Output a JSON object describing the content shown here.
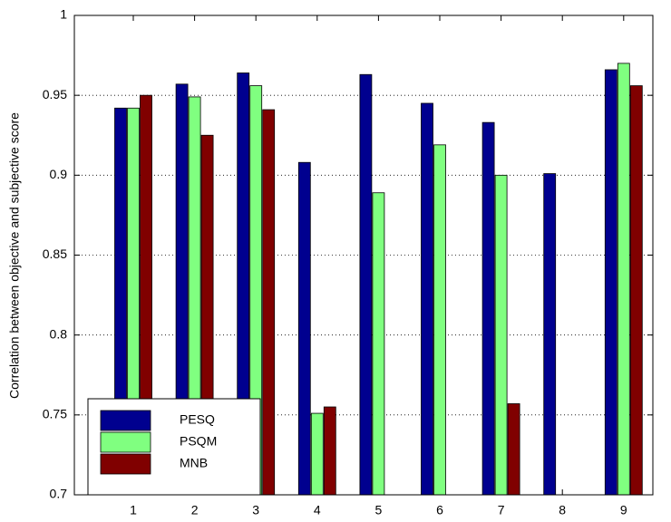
{
  "chart_data": {
    "type": "bar",
    "y_label": "Correlation between objective and subjective score",
    "categories": [
      "1",
      "2",
      "3",
      "4",
      "5",
      "6",
      "7",
      "8",
      "9"
    ],
    "series": [
      {
        "name": "PESQ",
        "color": "#00008f",
        "values": [
          0.942,
          0.957,
          0.964,
          0.908,
          0.963,
          0.945,
          0.933,
          0.901,
          0.966
        ]
      },
      {
        "name": "PSQM",
        "color": "#80ff80",
        "values": [
          0.942,
          0.949,
          0.956,
          0.751,
          0.889,
          0.919,
          0.9,
          null,
          0.97
        ]
      },
      {
        "name": "MNB",
        "color": "#800000",
        "values": [
          0.95,
          0.925,
          0.941,
          0.755,
          null,
          null,
          0.757,
          null,
          0.956
        ]
      }
    ],
    "ylim": [
      0.7,
      1
    ],
    "yticks": [
      {
        "value": 0.7,
        "label": "0.7"
      },
      0.75,
      {
        "value": 0.8,
        "label": "0.8"
      },
      0.85,
      {
        "value": 0.9,
        "label": "0.9"
      },
      0.95,
      1
    ],
    "grid": true,
    "legend": "lower left"
  }
}
